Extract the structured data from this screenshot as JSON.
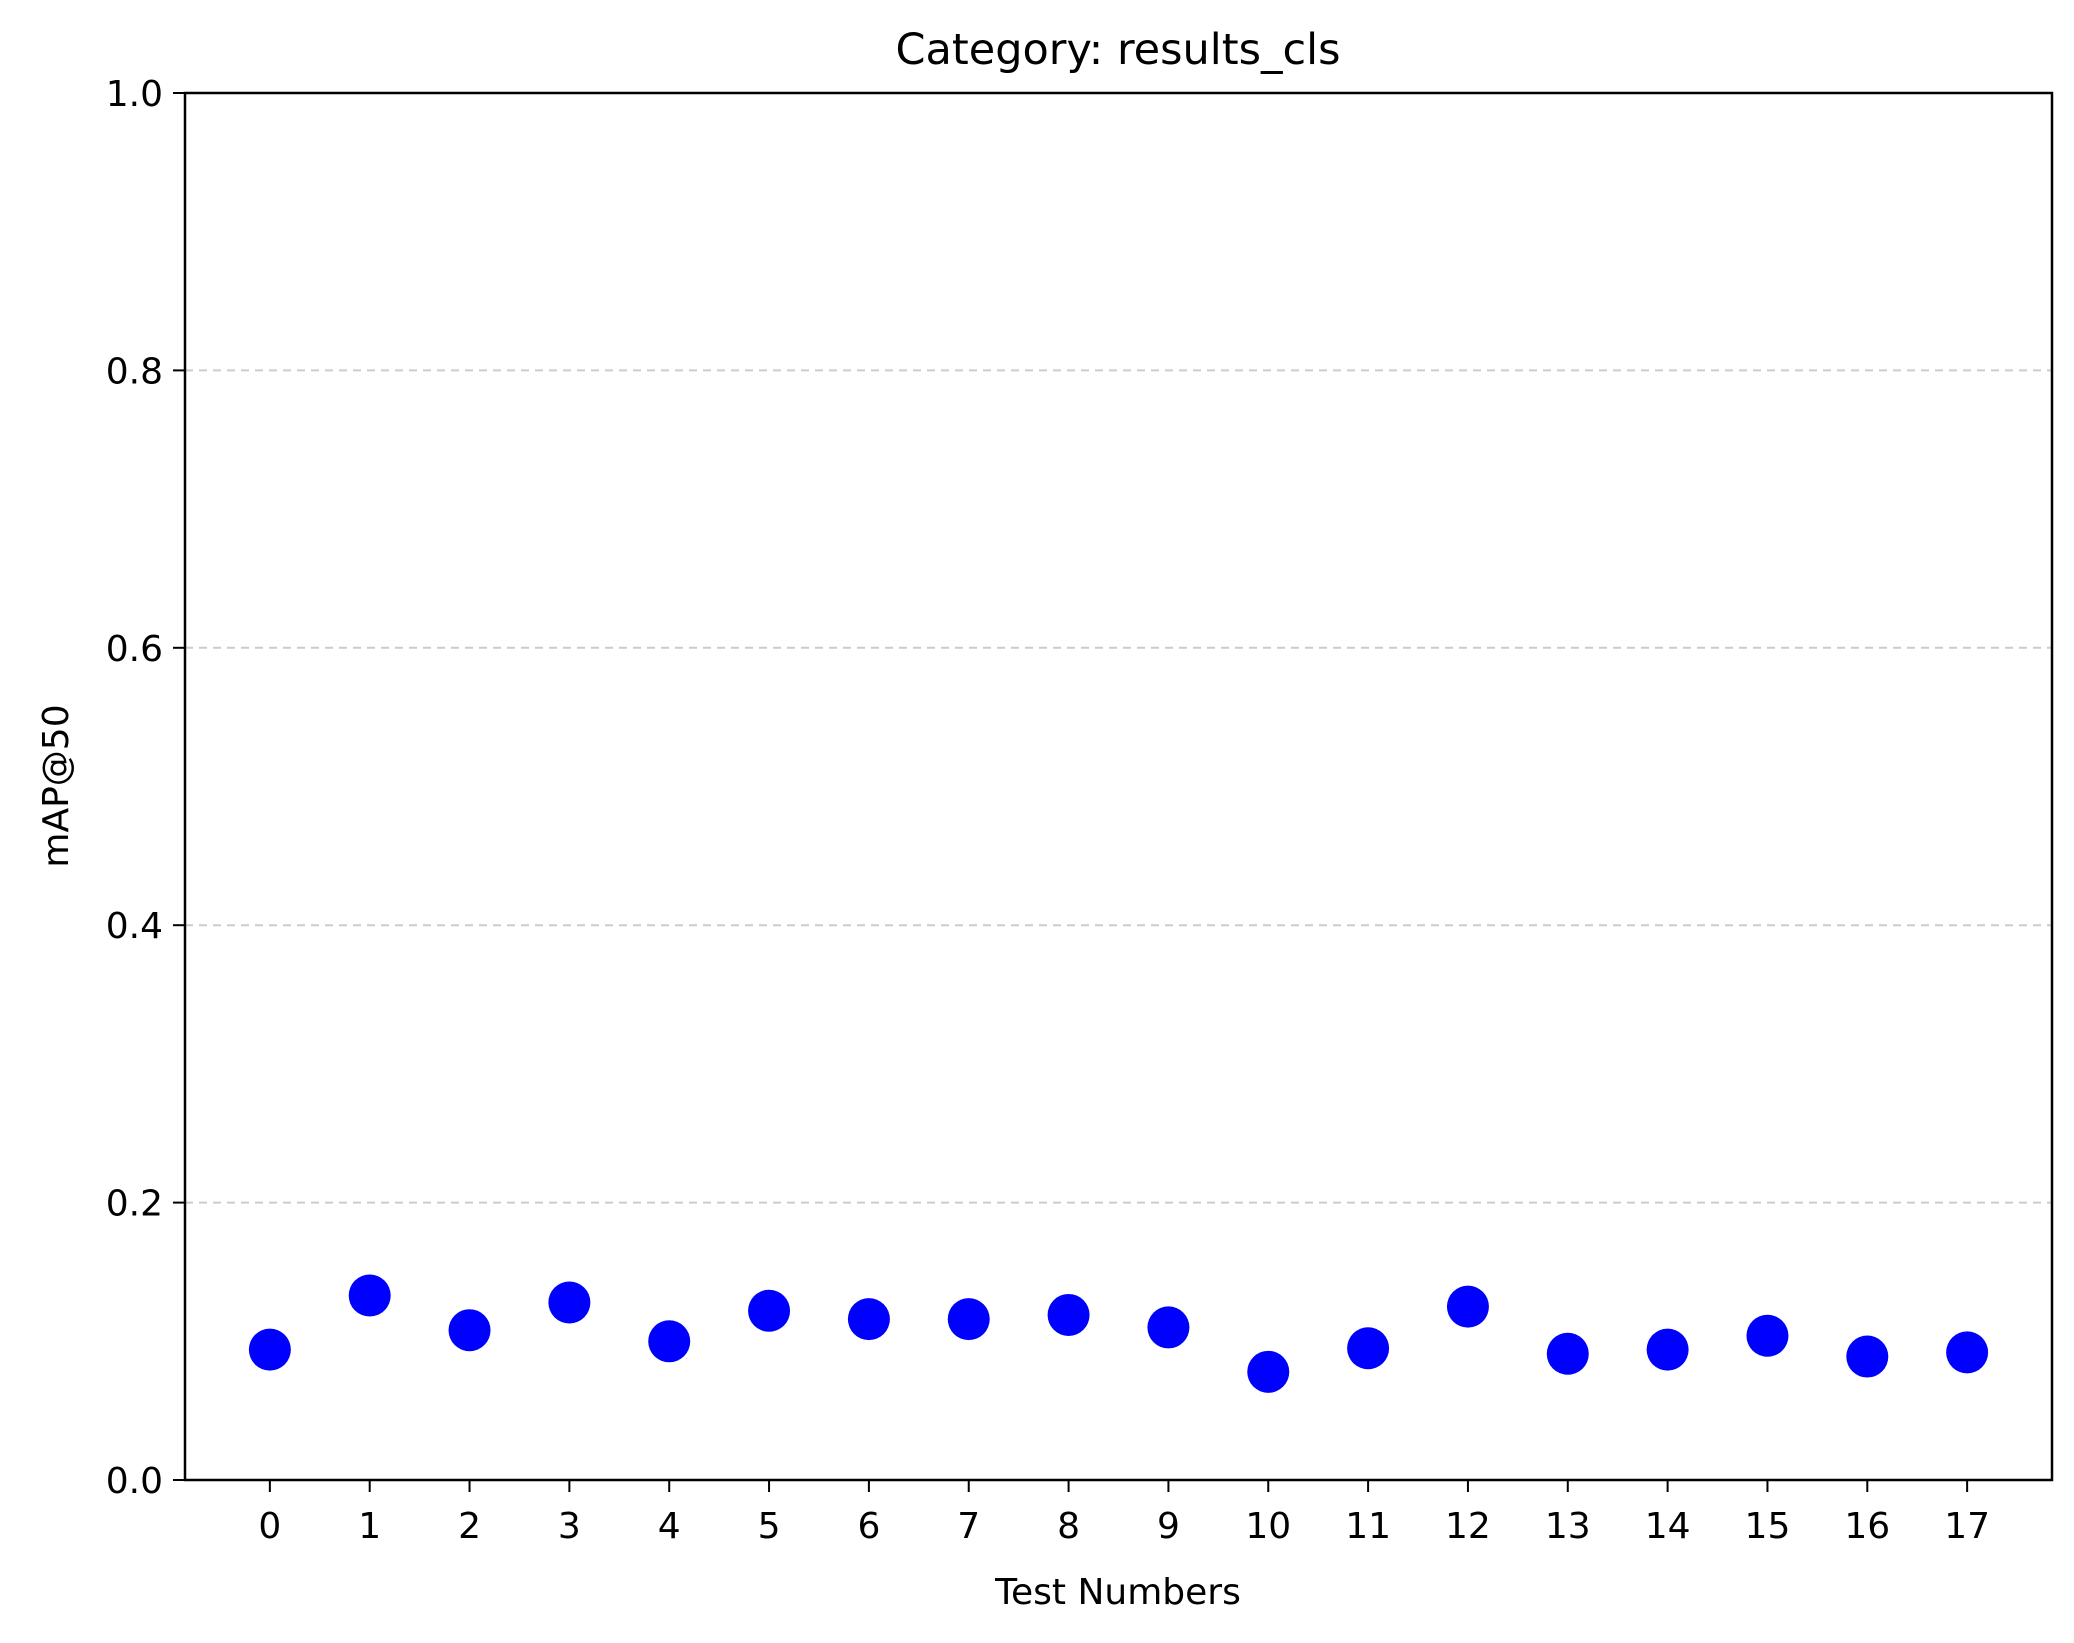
{
  "chart_data": {
    "type": "scatter",
    "title": "Category: results_cls",
    "xlabel": "Test Numbers",
    "ylabel": "mAP@50",
    "x": [
      0,
      1,
      2,
      3,
      4,
      5,
      6,
      7,
      8,
      9,
      10,
      11,
      12,
      13,
      14,
      15,
      16,
      17
    ],
    "x_tick_labels": [
      "0",
      "1",
      "2",
      "3",
      "4",
      "5",
      "6",
      "7",
      "8",
      "9",
      "10",
      "11",
      "12",
      "13",
      "14",
      "15",
      "16",
      "17"
    ],
    "y": [
      0.094,
      0.133,
      0.108,
      0.128,
      0.1,
      0.122,
      0.116,
      0.116,
      0.119,
      0.11,
      0.078,
      0.095,
      0.125,
      0.091,
      0.094,
      0.104,
      0.089,
      0.092
    ],
    "xlim": [
      -0.85,
      17.85
    ],
    "ylim": [
      0.0,
      1.0
    ],
    "y_ticks": [
      0.0,
      0.2,
      0.4,
      0.6,
      0.8,
      1.0
    ],
    "y_tick_labels": [
      "0.0",
      "0.2",
      "0.4",
      "0.6",
      "0.8",
      "1.0"
    ],
    "y_grid": true,
    "y_grid_style": "dashed",
    "marker_color": "#0000ff",
    "grid_color": "#cccccc",
    "axis_color": "#000000"
  }
}
